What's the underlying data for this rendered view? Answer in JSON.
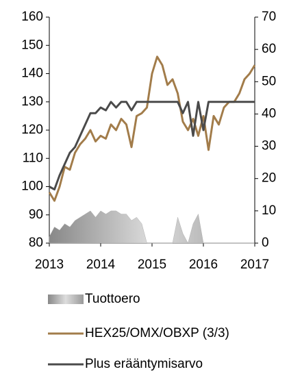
{
  "chart_data": {
    "type": "line",
    "x": [
      2013.0,
      2013.1,
      2013.2,
      2013.3,
      2013.4,
      2013.5,
      2013.6,
      2013.7,
      2013.8,
      2013.9,
      2014.0,
      2014.1,
      2014.2,
      2014.3,
      2014.4,
      2014.5,
      2014.6,
      2014.7,
      2014.8,
      2014.9,
      2015.0,
      2015.1,
      2015.2,
      2015.3,
      2015.4,
      2015.5,
      2015.6,
      2015.7,
      2015.8,
      2015.9,
      2016.0,
      2016.1,
      2016.2,
      2016.3,
      2016.4,
      2016.5,
      2016.6,
      2016.7,
      2016.8,
      2016.9,
      2017.0
    ],
    "series": [
      {
        "name": "Tuottoero",
        "color": "#b0b0b0",
        "axis": "y2",
        "area": true,
        "values": [
          2,
          5,
          4,
          6,
          5,
          7,
          8,
          9,
          10,
          8,
          10,
          9,
          10,
          10,
          9,
          9,
          7,
          8,
          6,
          0,
          0,
          0,
          0,
          0,
          0,
          8,
          3,
          0,
          6,
          9,
          0,
          0,
          0,
          0,
          0,
          0,
          0,
          0,
          0,
          0,
          0
        ]
      },
      {
        "name": "HEX25/OMX/OBXP (3/3)",
        "color": "#a27c4a",
        "values": [
          98,
          95,
          100,
          107,
          106,
          112,
          115,
          117,
          120,
          116,
          118,
          117,
          122,
          120,
          124,
          122,
          114,
          125,
          126,
          128,
          140,
          146,
          143,
          136,
          138,
          133,
          123,
          120,
          124,
          118,
          125,
          113,
          125,
          122,
          128,
          130,
          130,
          133,
          138,
          140,
          143
        ]
      },
      {
        "name": "Plus erääntymisarvo",
        "color": "#4a4a4a",
        "values": [
          100,
          99,
          104,
          108,
          112,
          114,
          118,
          122,
          126,
          126,
          128,
          127,
          130,
          128,
          130,
          130,
          127,
          130,
          130,
          130,
          130,
          130,
          130,
          130,
          130,
          130,
          126,
          130,
          118,
          130,
          120,
          130,
          130,
          130,
          130,
          130,
          130,
          130,
          130,
          130,
          130
        ]
      }
    ],
    "xlim": [
      2013,
      2017
    ],
    "xticks": [
      2013,
      2014,
      2015,
      2016,
      2017
    ],
    "ylim": [
      80,
      160
    ],
    "yticks": [
      80,
      90,
      100,
      110,
      120,
      130,
      140,
      150,
      160
    ],
    "y2lim": [
      0,
      70
    ],
    "y2ticks": [
      0,
      10,
      20,
      30,
      40,
      50,
      60,
      70
    ]
  }
}
